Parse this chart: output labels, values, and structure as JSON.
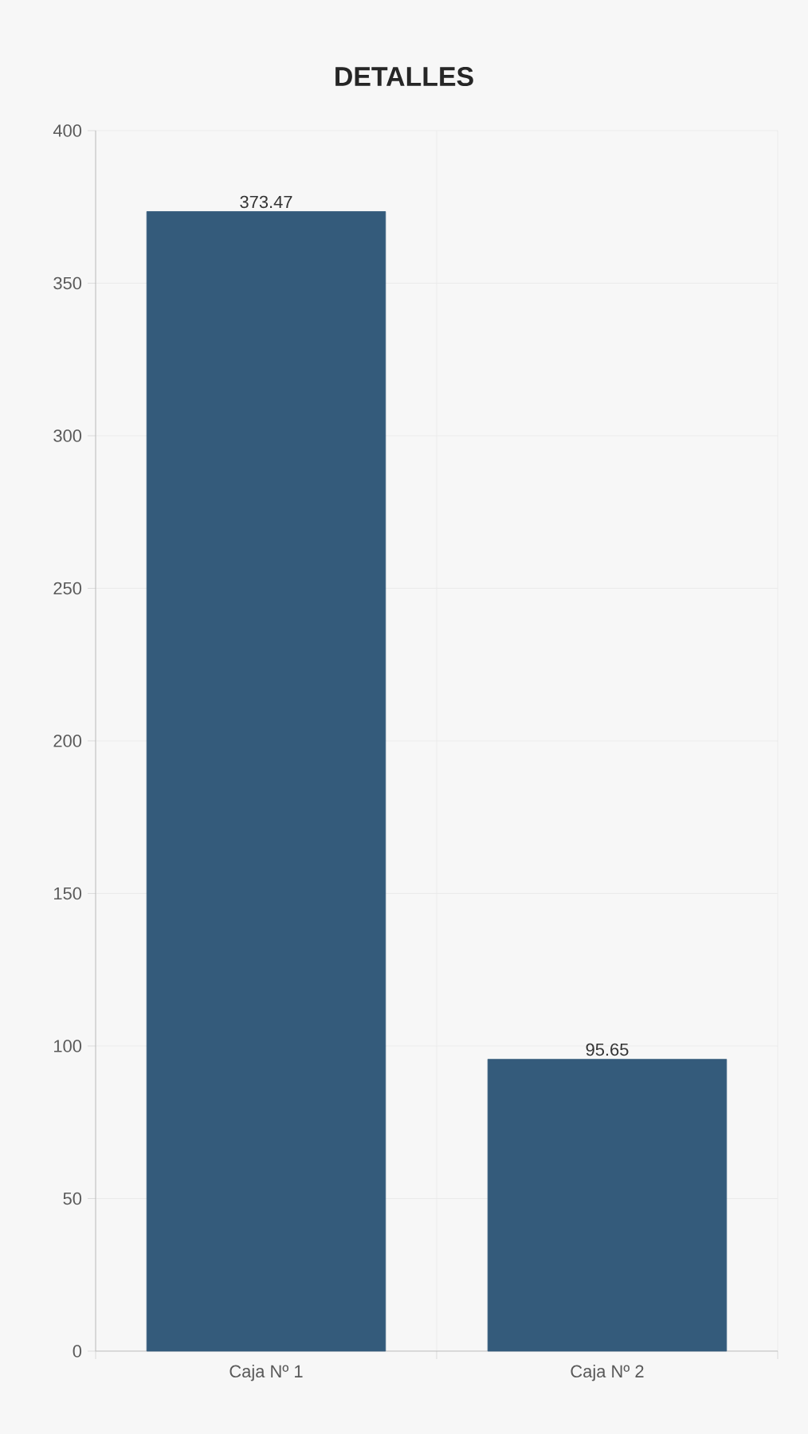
{
  "chart_data": {
    "type": "bar",
    "title": "DETALLES",
    "categories": [
      "Caja Nº 1",
      "Caja Nº 2"
    ],
    "values": [
      373.47,
      95.65
    ],
    "value_labels": [
      "373.47",
      "95.65"
    ],
    "color": "#345b7b",
    "ylim": [
      0,
      400
    ],
    "yticks": [
      0,
      50,
      100,
      150,
      200,
      250,
      300,
      350,
      400
    ],
    "grid": true
  }
}
